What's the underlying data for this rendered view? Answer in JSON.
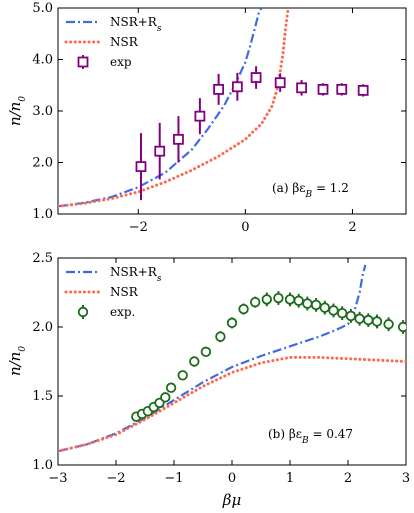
{
  "chart_data": [
    {
      "type": "line",
      "panel": "top",
      "xlim": [
        -3.5,
        3.0
      ],
      "ylim": [
        1.0,
        5.0
      ],
      "xticks": [
        -2,
        0,
        2
      ],
      "xtick_labels": [
        "−2",
        "0",
        "2"
      ],
      "yticks": [
        1.0,
        2.0,
        3.0,
        4.0,
        5.0
      ],
      "ytick_labels": [
        "1.0",
        "2.0",
        "3.0",
        "4.0",
        "5.0"
      ],
      "ylabel": "n/n0",
      "ylabel_main": "n/n",
      "ylabel_sub": "0",
      "annotation": "(a) βε_B = 1.2",
      "annotation_main": "(a) βε",
      "annotation_sub": "B",
      "annotation_tail": " = 1.2",
      "legend_placement": "top-left",
      "series": [
        {
          "name": "NSR+R_s",
          "name_main": "NSR+R",
          "name_sub": "s",
          "style": "dashdot",
          "color": "#4169E1",
          "x": [
            -3.5,
            -3.0,
            -2.5,
            -2.0,
            -1.5,
            -1.0,
            -0.7,
            -0.4,
            -0.2,
            0.0,
            0.1,
            0.2,
            0.25,
            0.3
          ],
          "y": [
            1.15,
            1.22,
            1.33,
            1.52,
            1.8,
            2.25,
            2.65,
            3.1,
            3.5,
            3.95,
            4.3,
            4.7,
            4.9,
            5.0
          ]
        },
        {
          "name": "NSR",
          "style": "dotted",
          "color": "#FA6A4E",
          "x": [
            -3.5,
            -3.0,
            -2.5,
            -2.0,
            -1.5,
            -1.0,
            -0.5,
            0.0,
            0.3,
            0.5,
            0.6,
            0.7,
            0.75,
            0.8
          ],
          "y": [
            1.15,
            1.21,
            1.3,
            1.43,
            1.62,
            1.85,
            2.12,
            2.45,
            2.75,
            3.1,
            3.45,
            4.1,
            4.6,
            5.0
          ]
        },
        {
          "name": "exp",
          "style": "marker-square",
          "color": "#800080",
          "x": [
            -1.95,
            -1.6,
            -1.25,
            -0.85,
            -0.5,
            -0.15,
            0.2,
            0.65,
            1.05,
            1.45,
            1.8,
            2.2
          ],
          "y": [
            1.92,
            2.22,
            2.45,
            2.9,
            3.42,
            3.47,
            3.65,
            3.55,
            3.45,
            3.42,
            3.42,
            3.4
          ],
          "err": [
            0.65,
            0.55,
            0.45,
            0.35,
            0.3,
            0.27,
            0.22,
            0.18,
            0.15,
            0.12,
            0.12,
            0.12
          ]
        }
      ]
    },
    {
      "type": "line",
      "panel": "bottom",
      "xlim": [
        -3.0,
        3.0
      ],
      "ylim": [
        1.0,
        2.5
      ],
      "xticks": [
        -3,
        -2,
        -1,
        0,
        1,
        2,
        3
      ],
      "xtick_labels": [
        "−3",
        "−2",
        "−1",
        "0",
        "1",
        "2",
        "3"
      ],
      "yticks": [
        1.0,
        1.5,
        2.0,
        2.5
      ],
      "ytick_labels": [
        "1.0",
        "1.5",
        "2.0",
        "2.5"
      ],
      "xlabel": "βμ",
      "ylabel": "n/n0",
      "ylabel_main": "n/n",
      "ylabel_sub": "0",
      "annotation": "(b) βε_B = 0.47",
      "annotation_main": "(b) βε",
      "annotation_sub": "B",
      "annotation_tail": " = 0.47",
      "legend_placement": "top-left",
      "series": [
        {
          "name": "NSR+R_s",
          "name_main": "NSR+R",
          "name_sub": "s",
          "style": "dashdot",
          "color": "#4169E1",
          "x": [
            -3.0,
            -2.5,
            -2.0,
            -1.5,
            -1.0,
            -0.5,
            0.0,
            0.5,
            1.0,
            1.5,
            1.8,
            2.0,
            2.1,
            2.2,
            2.25,
            2.3
          ],
          "y": [
            1.1,
            1.15,
            1.23,
            1.34,
            1.47,
            1.6,
            1.71,
            1.79,
            1.86,
            1.93,
            1.98,
            2.02,
            2.1,
            2.25,
            2.37,
            2.45
          ]
        },
        {
          "name": "NSR",
          "style": "dotted",
          "color": "#FA6A4E",
          "x": [
            -3.0,
            -2.5,
            -2.0,
            -1.5,
            -1.0,
            -0.5,
            0.0,
            0.5,
            1.0,
            1.5,
            2.0,
            2.5,
            3.0
          ],
          "y": [
            1.1,
            1.15,
            1.22,
            1.33,
            1.45,
            1.57,
            1.67,
            1.74,
            1.78,
            1.78,
            1.77,
            1.76,
            1.75
          ]
        },
        {
          "name": "exp.",
          "style": "marker-circle",
          "color": "#1A6B1A",
          "x": [
            -1.65,
            -1.55,
            -1.45,
            -1.35,
            -1.25,
            -1.15,
            -1.05,
            -0.85,
            -0.65,
            -0.45,
            -0.2,
            0.0,
            0.2,
            0.4,
            0.6,
            0.8,
            1.0,
            1.15,
            1.3,
            1.45,
            1.6,
            1.75,
            1.9,
            2.05,
            2.2,
            2.35,
            2.5,
            2.7,
            2.95
          ],
          "y": [
            1.35,
            1.37,
            1.39,
            1.42,
            1.45,
            1.49,
            1.56,
            1.65,
            1.75,
            1.82,
            1.93,
            2.03,
            2.13,
            2.18,
            2.2,
            2.21,
            2.2,
            2.19,
            2.17,
            2.16,
            2.14,
            2.12,
            2.1,
            2.08,
            2.06,
            2.05,
            2.04,
            2.02,
            2.0
          ],
          "err": [
            0.02,
            0.02,
            0.02,
            0.02,
            0.02,
            0.02,
            0.02,
            0.03,
            0.03,
            0.03,
            0.04,
            0.04,
            0.04,
            0.04,
            0.05,
            0.05,
            0.05,
            0.05,
            0.05,
            0.05,
            0.05,
            0.05,
            0.05,
            0.05,
            0.05,
            0.05,
            0.05,
            0.05,
            0.05
          ]
        }
      ]
    }
  ]
}
